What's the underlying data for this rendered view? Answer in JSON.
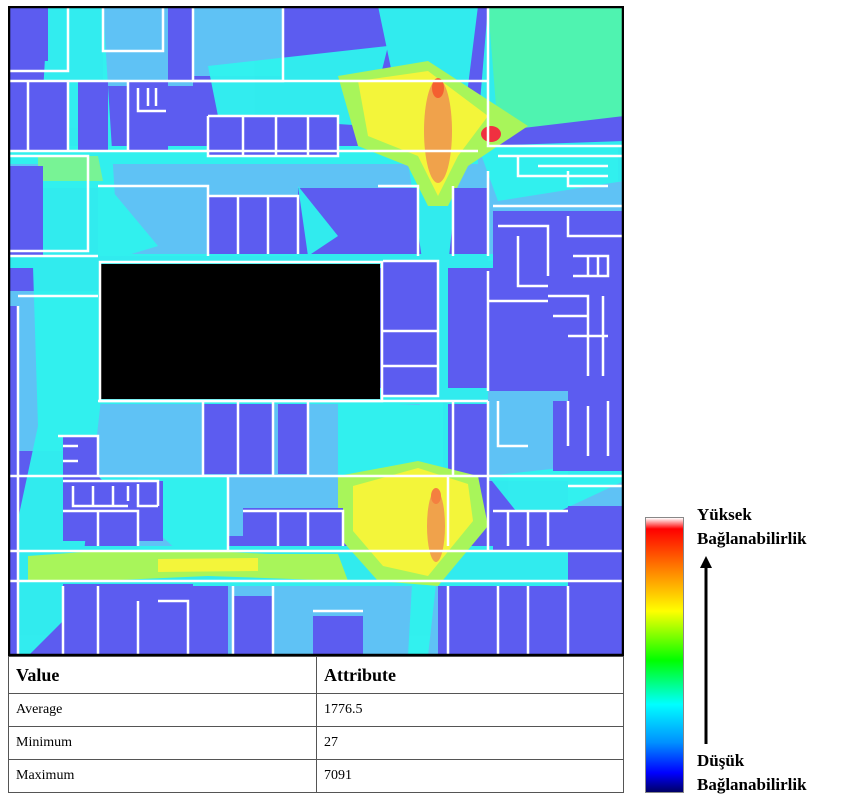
{
  "table": {
    "header": [
      "Value",
      "Attribute"
    ],
    "rows": [
      [
        "Average",
        "1776.5"
      ],
      [
        "Minimum",
        "27"
      ],
      [
        "Maximum",
        "7091"
      ]
    ]
  },
  "legend": {
    "high": [
      "Yüksek",
      "Bağlanabilirlik"
    ],
    "low": [
      "Düşük",
      "Bağlanabilirlik"
    ],
    "gradient_colors": [
      "#ffffff",
      "#ff0000",
      "#ff7a00",
      "#ffff00",
      "#00ff00",
      "#00ffff",
      "#0090ff",
      "#0000ff",
      "#000066"
    ]
  },
  "colors": {
    "room_low": "#5c5cf0",
    "corridor_medium": "#5fc2f5",
    "corridor_cyan": "#2ff3ee",
    "high": "#f3f53a",
    "peak": "#f0a24b",
    "core": "#000000",
    "wall": "#ffffff"
  }
}
